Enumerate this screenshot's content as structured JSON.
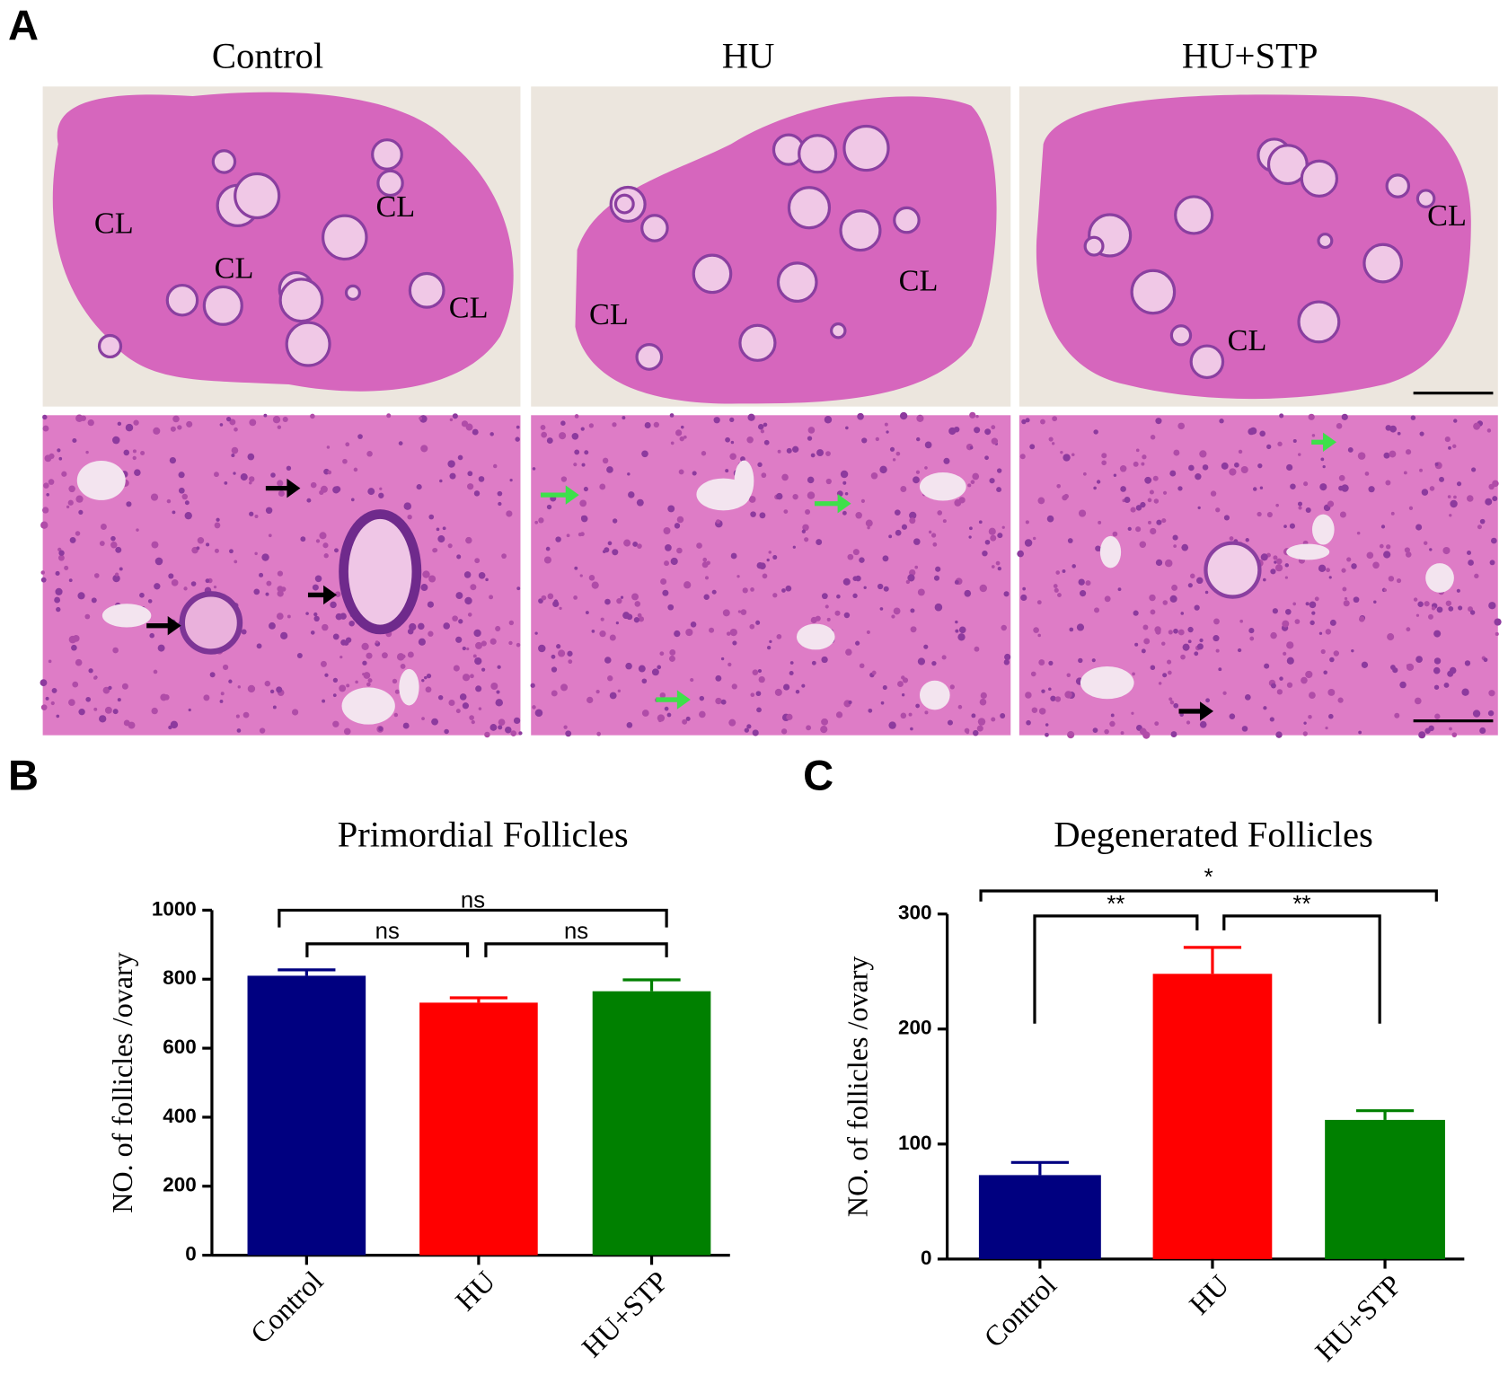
{
  "panel_a": {
    "label": "A",
    "columns": [
      "Control",
      "HU",
      "HU+STP"
    ],
    "cl_labels": [
      [
        "CL",
        "CL",
        "CL",
        "CL"
      ],
      [
        "CL",
        "CL"
      ],
      [
        "CL",
        "CL"
      ]
    ]
  },
  "chart_data": [
    {
      "type": "bar",
      "panel_label": "B",
      "title": "Primordial Follicles",
      "y_label": "NO. of follicles /ovary",
      "categories": [
        "Control",
        "HU",
        "HU+STP"
      ],
      "values": [
        810,
        732,
        765
      ],
      "errors": [
        17,
        14,
        33
      ],
      "colors": [
        "#000080",
        "#ff0000",
        "#008000"
      ],
      "ylim": [
        0,
        1000
      ],
      "yticks": [
        0,
        200,
        400,
        600,
        800,
        1000
      ],
      "annotations": [
        "ns",
        "ns",
        "ns"
      ]
    },
    {
      "type": "bar",
      "panel_label": "C",
      "title": "Degenerated Follicles",
      "y_label": "NO. of follicles /ovary",
      "categories": [
        "Control",
        "HU",
        "HU+STP"
      ],
      "values": [
        73,
        248,
        121
      ],
      "errors": [
        11,
        23,
        8
      ],
      "colors": [
        "#000080",
        "#ff0000",
        "#008000"
      ],
      "ylim": [
        0,
        300
      ],
      "yticks": [
        0,
        100,
        200,
        300
      ],
      "annotations": [
        "*",
        "**",
        "**"
      ]
    }
  ]
}
